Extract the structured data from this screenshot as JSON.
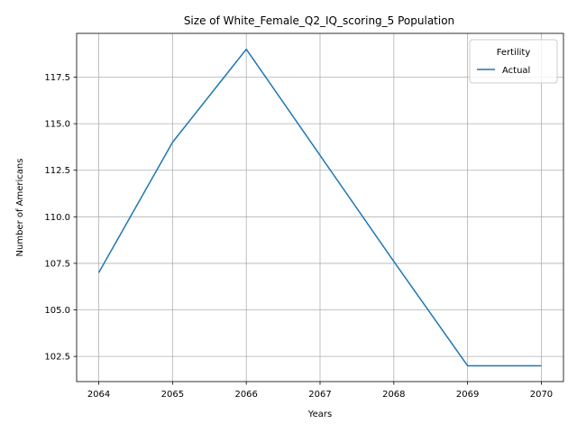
{
  "chart_data": {
    "type": "line",
    "title": "Size of White_Female_Q2_IQ_scoring_5 Population",
    "xlabel": "Years",
    "ylabel": "Number of Americans",
    "x": [
      2064,
      2065,
      2066,
      2067,
      2068,
      2069,
      2070
    ],
    "series": [
      {
        "name": "Actual",
        "values": [
          107,
          114,
          119,
          113.3,
          107.6,
          102,
          102
        ],
        "color": "#1f77b4"
      }
    ],
    "xlim": [
      2063.7,
      2070.3
    ],
    "ylim": [
      101.15,
      119.85
    ],
    "xticks": [
      "2064",
      "2065",
      "2066",
      "2067",
      "2068",
      "2069",
      "2070"
    ],
    "yticks": [
      "102.5",
      "105.0",
      "107.5",
      "110.0",
      "112.5",
      "115.0",
      "117.5"
    ],
    "grid": true,
    "legend": {
      "title": "Fertility",
      "placement": "top-right"
    }
  }
}
